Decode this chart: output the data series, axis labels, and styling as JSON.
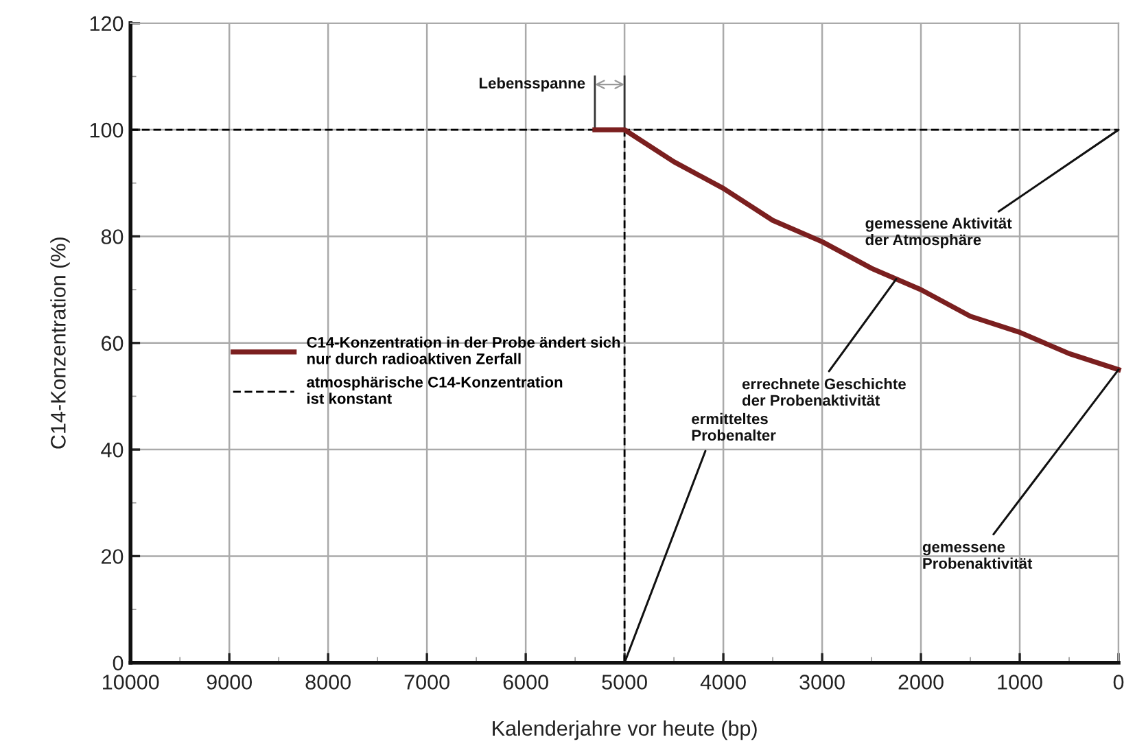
{
  "chart_data": {
    "type": "line",
    "xlabel": "Kalenderjahre vor heute (bp)",
    "ylabel": "C14-Konzentration (%)",
    "series": [
      {
        "name": "C14-Konzentration in der Probe ändert sich nur durch radioaktiven Zerfall",
        "color": "#7b1f1f",
        "line_style": "solid",
        "x": [
          5300,
          5000,
          4500,
          4000,
          3500,
          3000,
          2500,
          2000,
          1500,
          1000,
          500,
          0
        ],
        "values": [
          100,
          100,
          94,
          89,
          83,
          79,
          74,
          70,
          65,
          62,
          58,
          55
        ]
      },
      {
        "name": "atmosphärische C14-Konzentration ist konstant",
        "color": "#000000",
        "line_style": "dashed",
        "x": [
          10000,
          0
        ],
        "values": [
          100,
          100
        ]
      },
      {
        "color": "#000000",
        "line_style": "dashed",
        "x": [
          5000,
          5000
        ],
        "values": [
          0,
          100
        ]
      }
    ],
    "annotations": [
      "Lebensspanne",
      {
        "text": "gemessene Aktivität der Atmosphäre",
        "x": 0,
        "y": 100
      },
      {
        "text": "errechnete Geschichte der Probenaktivität",
        "x": 2250,
        "y": 72
      },
      {
        "text": "ermitteltes Probenalter",
        "x": 5000,
        "y": 0
      },
      {
        "text": "gemessene Probenaktivität",
        "x": 0,
        "y": 55
      }
    ],
    "xlim": [
      10000,
      0
    ],
    "ylim": [
      0,
      120
    ],
    "xticks": [
      10000,
      9000,
      8000,
      7000,
      6000,
      5000,
      4000,
      3000,
      2000,
      1000,
      0
    ],
    "yticks": [
      0,
      20,
      40,
      60,
      80,
      100,
      120
    ],
    "grid": true,
    "legend": "left",
    "marker": "none"
  }
}
